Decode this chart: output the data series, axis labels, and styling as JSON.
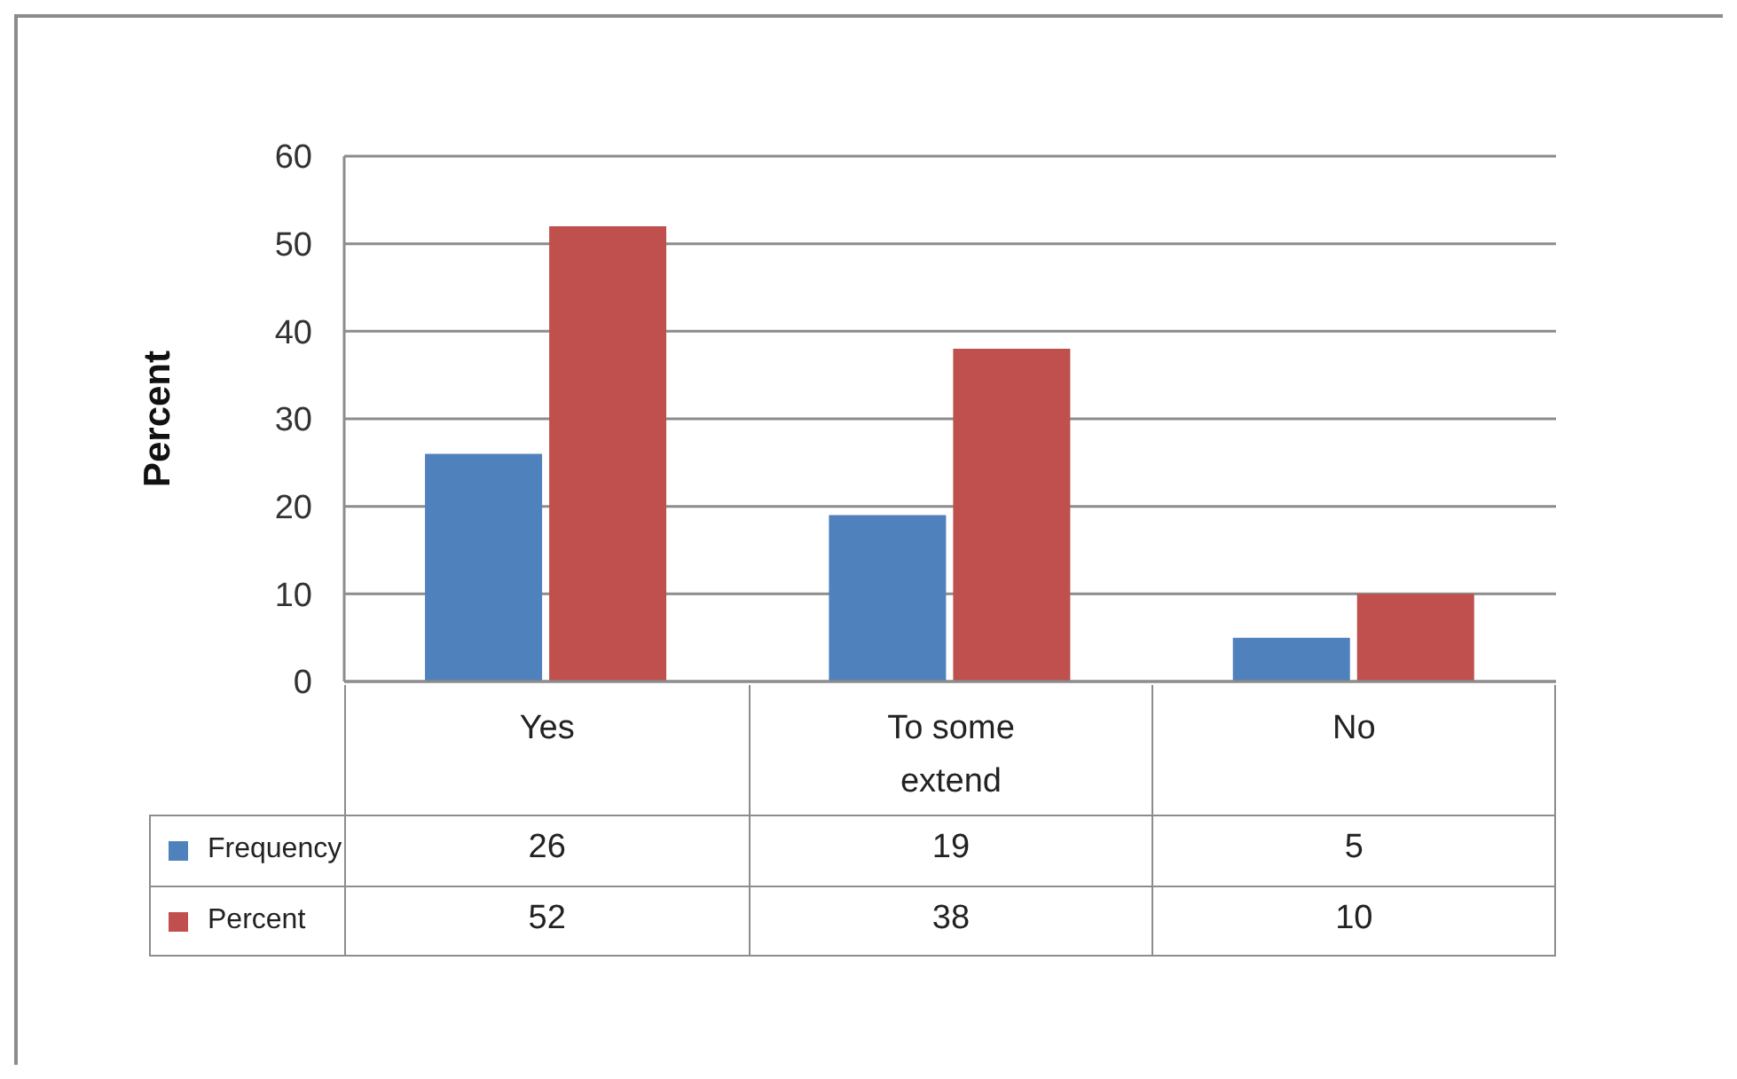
{
  "chart_data": {
    "type": "bar",
    "ylabel": "Percent",
    "categories": [
      "Yes",
      "To some extend",
      "No"
    ],
    "series": [
      {
        "name": "Frequency",
        "color": "#4f81bd",
        "values": [
          26,
          19,
          5
        ]
      },
      {
        "name": "Percent",
        "color": "#c0504d",
        "values": [
          52,
          38,
          10
        ]
      }
    ],
    "ylim": [
      0,
      60
    ],
    "yticks": [
      0,
      10,
      20,
      30,
      40,
      50,
      60
    ],
    "grid": "y",
    "legend": "bottom",
    "data_labels": true
  }
}
